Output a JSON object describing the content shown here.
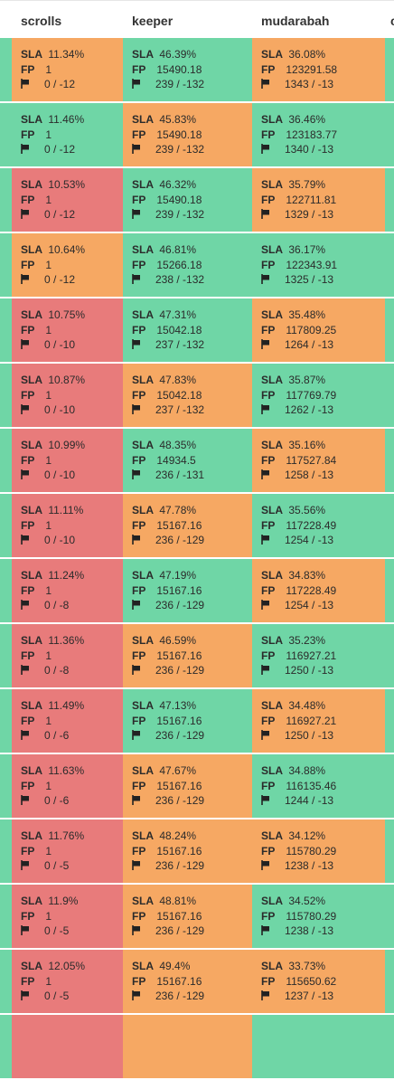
{
  "colors": {
    "green": "#6fd6a6",
    "orange": "#f6a863",
    "red": "#e87b7b"
  },
  "header": {
    "col0": "scrolls",
    "col1": "keeper",
    "col2": "mudarabah",
    "col3": "c"
  },
  "labels": {
    "sla": "SLA",
    "fp": "FP"
  },
  "rows": [
    {
      "edge": "green",
      "right": "green",
      "cells": [
        {
          "color": "orange",
          "sla": "11.34%",
          "fp": "1",
          "flag": "0 / -12"
        },
        {
          "color": "green",
          "sla": "46.39%",
          "fp": "15490.18",
          "flag": "239 / -132"
        },
        {
          "color": "orange",
          "sla": "36.08%",
          "fp": "123291.58",
          "flag": "1343 / -13"
        }
      ]
    },
    {
      "edge": "green",
      "right": "green",
      "cells": [
        {
          "color": "green",
          "sla": "11.46%",
          "fp": "1",
          "flag": "0 / -12"
        },
        {
          "color": "orange",
          "sla": "45.83%",
          "fp": "15490.18",
          "flag": "239 / -132"
        },
        {
          "color": "green",
          "sla": "36.46%",
          "fp": "123183.77",
          "flag": "1340 / -13"
        }
      ]
    },
    {
      "edge": "green",
      "right": "green",
      "cells": [
        {
          "color": "red",
          "sla": "10.53%",
          "fp": "1",
          "flag": "0 / -12"
        },
        {
          "color": "green",
          "sla": "46.32%",
          "fp": "15490.18",
          "flag": "239 / -132"
        },
        {
          "color": "orange",
          "sla": "35.79%",
          "fp": "122711.81",
          "flag": "1329 / -13"
        }
      ]
    },
    {
      "edge": "green",
      "right": "green",
      "cells": [
        {
          "color": "orange",
          "sla": "10.64%",
          "fp": "1",
          "flag": "0 / -12"
        },
        {
          "color": "green",
          "sla": "46.81%",
          "fp": "15266.18",
          "flag": "238 / -132"
        },
        {
          "color": "green",
          "sla": "36.17%",
          "fp": "122343.91",
          "flag": "1325 / -13"
        }
      ]
    },
    {
      "edge": "green",
      "right": "green",
      "cells": [
        {
          "color": "red",
          "sla": "10.75%",
          "fp": "1",
          "flag": "0 / -10"
        },
        {
          "color": "green",
          "sla": "47.31%",
          "fp": "15042.18",
          "flag": "237 / -132"
        },
        {
          "color": "orange",
          "sla": "35.48%",
          "fp": "117809.25",
          "flag": "1264 / -13"
        }
      ]
    },
    {
      "edge": "green",
      "right": "green",
      "cells": [
        {
          "color": "red",
          "sla": "10.87%",
          "fp": "1",
          "flag": "0 / -10"
        },
        {
          "color": "orange",
          "sla": "47.83%",
          "fp": "15042.18",
          "flag": "237 / -132"
        },
        {
          "color": "green",
          "sla": "35.87%",
          "fp": "117769.79",
          "flag": "1262 / -13"
        }
      ]
    },
    {
      "edge": "green",
      "right": "green",
      "cells": [
        {
          "color": "red",
          "sla": "10.99%",
          "fp": "1",
          "flag": "0 / -10"
        },
        {
          "color": "green",
          "sla": "48.35%",
          "fp": "14934.5",
          "flag": "236 / -131"
        },
        {
          "color": "orange",
          "sla": "35.16%",
          "fp": "117527.84",
          "flag": "1258 / -13"
        }
      ]
    },
    {
      "edge": "green",
      "right": "green",
      "cells": [
        {
          "color": "red",
          "sla": "11.11%",
          "fp": "1",
          "flag": "0 / -10"
        },
        {
          "color": "orange",
          "sla": "47.78%",
          "fp": "15167.16",
          "flag": "236 / -129"
        },
        {
          "color": "green",
          "sla": "35.56%",
          "fp": "117228.49",
          "flag": "1254 / -13"
        }
      ]
    },
    {
      "edge": "green",
      "right": "green",
      "cells": [
        {
          "color": "red",
          "sla": "11.24%",
          "fp": "1",
          "flag": "0 / -8"
        },
        {
          "color": "green",
          "sla": "47.19%",
          "fp": "15167.16",
          "flag": "236 / -129"
        },
        {
          "color": "orange",
          "sla": "34.83%",
          "fp": "117228.49",
          "flag": "1254 / -13"
        }
      ]
    },
    {
      "edge": "green",
      "right": "green",
      "cells": [
        {
          "color": "red",
          "sla": "11.36%",
          "fp": "1",
          "flag": "0 / -8"
        },
        {
          "color": "orange",
          "sla": "46.59%",
          "fp": "15167.16",
          "flag": "236 / -129"
        },
        {
          "color": "green",
          "sla": "35.23%",
          "fp": "116927.21",
          "flag": "1250 / -13"
        }
      ]
    },
    {
      "edge": "green",
      "right": "green",
      "cells": [
        {
          "color": "red",
          "sla": "11.49%",
          "fp": "1",
          "flag": "0 / -6"
        },
        {
          "color": "green",
          "sla": "47.13%",
          "fp": "15167.16",
          "flag": "236 / -129"
        },
        {
          "color": "orange",
          "sla": "34.48%",
          "fp": "116927.21",
          "flag": "1250 / -13"
        }
      ]
    },
    {
      "edge": "green",
      "right": "green",
      "cells": [
        {
          "color": "red",
          "sla": "11.63%",
          "fp": "1",
          "flag": "0 / -6"
        },
        {
          "color": "orange",
          "sla": "47.67%",
          "fp": "15167.16",
          "flag": "236 / -129"
        },
        {
          "color": "green",
          "sla": "34.88%",
          "fp": "116135.46",
          "flag": "1244 / -13"
        }
      ]
    },
    {
      "edge": "green",
      "right": "green",
      "cells": [
        {
          "color": "red",
          "sla": "11.76%",
          "fp": "1",
          "flag": "0 / -5"
        },
        {
          "color": "orange",
          "sla": "48.24%",
          "fp": "15167.16",
          "flag": "236 / -129"
        },
        {
          "color": "orange",
          "sla": "34.12%",
          "fp": "115780.29",
          "flag": "1238 / -13"
        }
      ]
    },
    {
      "edge": "green",
      "right": "green",
      "cells": [
        {
          "color": "red",
          "sla": "11.9%",
          "fp": "1",
          "flag": "0 / -5"
        },
        {
          "color": "orange",
          "sla": "48.81%",
          "fp": "15167.16",
          "flag": "236 / -129"
        },
        {
          "color": "green",
          "sla": "34.52%",
          "fp": "115780.29",
          "flag": "1238 / -13"
        }
      ]
    },
    {
      "edge": "green",
      "right": "green",
      "cells": [
        {
          "color": "red",
          "sla": "12.05%",
          "fp": "1",
          "flag": "0 / -5"
        },
        {
          "color": "orange",
          "sla": "49.4%",
          "fp": "15167.16",
          "flag": "236 / -129"
        },
        {
          "color": "orange",
          "sla": "33.73%",
          "fp": "115650.62",
          "flag": "1237 / -13"
        }
      ]
    },
    {
      "edge": "green",
      "right": "green",
      "cells": [
        {
          "color": "red",
          "sla": "",
          "fp": "",
          "flag": ""
        },
        {
          "color": "orange",
          "sla": "",
          "fp": "",
          "flag": ""
        },
        {
          "color": "green",
          "sla": "",
          "fp": "",
          "flag": ""
        }
      ]
    }
  ]
}
